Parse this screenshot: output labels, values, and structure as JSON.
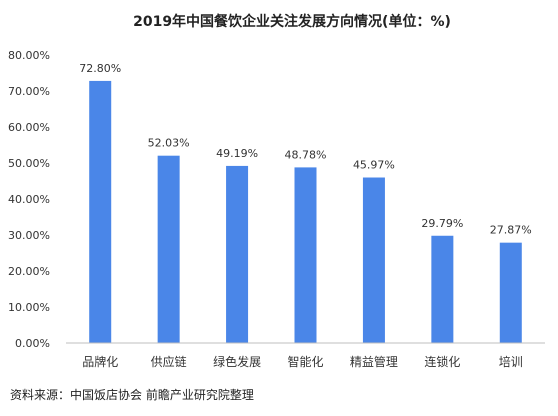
{
  "chart_data": {
    "type": "bar",
    "title": "2019年中国餐饮企业关注发展方向情况(单位：%)",
    "categories": [
      "品牌化",
      "供应链",
      "绿色发展",
      "智能化",
      "精益管理",
      "连锁化",
      "培训"
    ],
    "values": [
      72.8,
      52.03,
      49.19,
      48.78,
      45.97,
      29.79,
      27.87
    ],
    "data_labels": [
      "72.80%",
      "52.03%",
      "49.19%",
      "48.78%",
      "45.97%",
      "29.79%",
      "27.87%"
    ],
    "y_ticks": [
      "0.00%",
      "10.00%",
      "20.00%",
      "30.00%",
      "40.00%",
      "50.00%",
      "60.00%",
      "70.00%",
      "80.00%"
    ],
    "ylim": [
      0,
      80
    ],
    "grid": false,
    "colors": {
      "bar": "#4a86e8",
      "text": "#333333",
      "axis": "#bfbfbf"
    }
  },
  "source_note": "资料来源：中国饭店协会 前瞻产业研究院整理"
}
